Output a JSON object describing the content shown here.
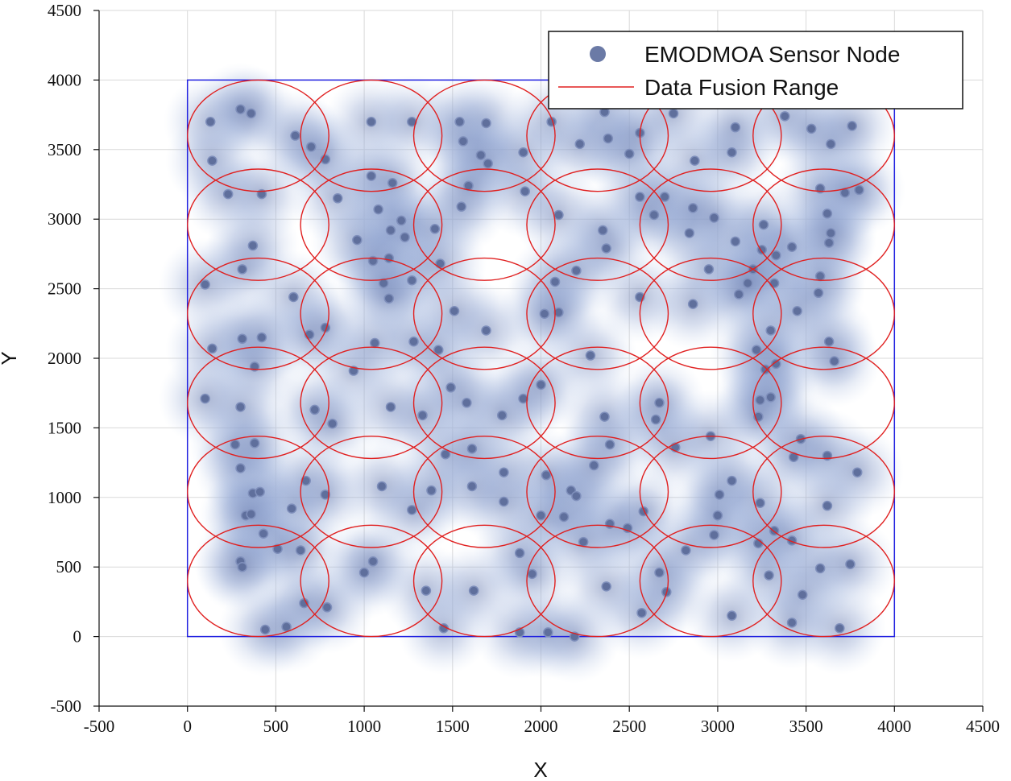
{
  "chart_data": {
    "type": "scatter",
    "title": "",
    "xlabel": "X",
    "ylabel": "Y",
    "xlim": [
      -500,
      4500
    ],
    "ylim": [
      -500,
      4500
    ],
    "xticks": [
      -500,
      0,
      500,
      1000,
      1500,
      2000,
      2500,
      3000,
      3500,
      4000,
      4500
    ],
    "yticks": [
      -500,
      0,
      500,
      1000,
      1500,
      2000,
      2500,
      3000,
      3500,
      4000,
      4500
    ],
    "grid": true,
    "legend_position": "top-right",
    "legend": [
      {
        "label": "EMODMOA Sensor Node",
        "marker": "circle",
        "color": "#6b7aa6"
      },
      {
        "label": "Data Fusion Range",
        "marker": "line",
        "color": "#e02020"
      }
    ],
    "region": {
      "x": [
        0,
        4000
      ],
      "y": [
        0,
        4000
      ],
      "color": "#2020e0"
    },
    "fusion_range": {
      "centers_x": [
        400,
        1040,
        1680,
        2320,
        2960,
        3600
      ],
      "centers_y": [
        400,
        1040,
        1680,
        2320,
        2960,
        3600
      ],
      "radius_x": 400,
      "radius_y": 400,
      "color": "#e02020"
    },
    "series": [
      {
        "name": "EMODMOA Sensor Node",
        "points": [
          [
            130,
            3700
          ],
          [
            300,
            3790
          ],
          [
            360,
            3760
          ],
          [
            140,
            3420
          ],
          [
            610,
            3600
          ],
          [
            700,
            3520
          ],
          [
            780,
            3430
          ],
          [
            1040,
            3700
          ],
          [
            1270,
            3700
          ],
          [
            1540,
            3700
          ],
          [
            1690,
            3690
          ],
          [
            1560,
            3560
          ],
          [
            1660,
            3460
          ],
          [
            1700,
            3400
          ],
          [
            1900,
            3480
          ],
          [
            2060,
            3700
          ],
          [
            2220,
            3540
          ],
          [
            2360,
            3770
          ],
          [
            2380,
            3580
          ],
          [
            2500,
            3470
          ],
          [
            2560,
            3620
          ],
          [
            2750,
            3760
          ],
          [
            2870,
            3420
          ],
          [
            3080,
            3480
          ],
          [
            3100,
            3660
          ],
          [
            3380,
            3740
          ],
          [
            3530,
            3650
          ],
          [
            3640,
            3540
          ],
          [
            3760,
            3670
          ],
          [
            230,
            3180
          ],
          [
            420,
            3180
          ],
          [
            370,
            2810
          ],
          [
            310,
            2640
          ],
          [
            100,
            2530
          ],
          [
            850,
            3150
          ],
          [
            1040,
            3310
          ],
          [
            1080,
            3070
          ],
          [
            1160,
            3260
          ],
          [
            1210,
            2990
          ],
          [
            1150,
            2920
          ],
          [
            1230,
            2870
          ],
          [
            1400,
            2930
          ],
          [
            960,
            2850
          ],
          [
            1140,
            2720
          ],
          [
            1050,
            2700
          ],
          [
            1270,
            2560
          ],
          [
            1110,
            2540
          ],
          [
            1140,
            2430
          ],
          [
            1430,
            2680
          ],
          [
            1550,
            3090
          ],
          [
            1590,
            3240
          ],
          [
            1910,
            3200
          ],
          [
            2100,
            3030
          ],
          [
            2350,
            2920
          ],
          [
            2370,
            2790
          ],
          [
            2560,
            3160
          ],
          [
            2700,
            3160
          ],
          [
            2640,
            3030
          ],
          [
            2840,
            2900
          ],
          [
            2860,
            3080
          ],
          [
            2980,
            3010
          ],
          [
            3100,
            2840
          ],
          [
            3260,
            2960
          ],
          [
            3250,
            2780
          ],
          [
            3330,
            2740
          ],
          [
            3420,
            2800
          ],
          [
            3580,
            3220
          ],
          [
            3620,
            3040
          ],
          [
            3720,
            3190
          ],
          [
            3800,
            3210
          ],
          [
            3640,
            2900
          ],
          [
            3630,
            2830
          ],
          [
            3580,
            2590
          ],
          [
            3570,
            2470
          ],
          [
            3320,
            2540
          ],
          [
            3200,
            2640
          ],
          [
            2950,
            2640
          ],
          [
            2200,
            2630
          ],
          [
            2080,
            2550
          ],
          [
            2020,
            2320
          ],
          [
            2100,
            2330
          ],
          [
            2560,
            2440
          ],
          [
            2860,
            2390
          ],
          [
            3120,
            2460
          ],
          [
            3170,
            2540
          ],
          [
            3450,
            2340
          ],
          [
            3300,
            2200
          ],
          [
            3220,
            2060
          ],
          [
            3330,
            1960
          ],
          [
            3270,
            1920
          ],
          [
            3240,
            1700
          ],
          [
            3300,
            1720
          ],
          [
            3230,
            1580
          ],
          [
            3630,
            2120
          ],
          [
            3660,
            1980
          ],
          [
            600,
            2440
          ],
          [
            780,
            2220
          ],
          [
            690,
            2170
          ],
          [
            140,
            2070
          ],
          [
            310,
            2140
          ],
          [
            420,
            2150
          ],
          [
            380,
            1940
          ],
          [
            940,
            1910
          ],
          [
            1060,
            2110
          ],
          [
            1280,
            2120
          ],
          [
            1420,
            2060
          ],
          [
            1490,
            1790
          ],
          [
            1580,
            1680
          ],
          [
            1900,
            1710
          ],
          [
            1780,
            1590
          ],
          [
            1690,
            2200
          ],
          [
            1510,
            2340
          ],
          [
            2000,
            1810
          ],
          [
            2280,
            2020
          ],
          [
            2360,
            1580
          ],
          [
            2390,
            1380
          ],
          [
            2650,
            1560
          ],
          [
            2670,
            1680
          ],
          [
            2760,
            1360
          ],
          [
            2960,
            1440
          ],
          [
            3430,
            1290
          ],
          [
            3470,
            1420
          ],
          [
            3620,
            1300
          ],
          [
            3790,
            1180
          ],
          [
            3080,
            1120
          ],
          [
            3010,
            1020
          ],
          [
            3000,
            870
          ],
          [
            2980,
            730
          ],
          [
            3240,
            960
          ],
          [
            3320,
            760
          ],
          [
            3230,
            670
          ],
          [
            3420,
            690
          ],
          [
            3290,
            440
          ],
          [
            3580,
            490
          ],
          [
            3750,
            520
          ],
          [
            3620,
            940
          ],
          [
            3480,
            300
          ],
          [
            3420,
            100
          ],
          [
            3690,
            60
          ],
          [
            3080,
            150
          ],
          [
            2710,
            320
          ],
          [
            2820,
            620
          ],
          [
            2670,
            460
          ],
          [
            2570,
            170
          ],
          [
            2370,
            360
          ],
          [
            2490,
            780
          ],
          [
            2580,
            900
          ],
          [
            2390,
            810
          ],
          [
            2170,
            1050
          ],
          [
            2200,
            1010
          ],
          [
            2130,
            860
          ],
          [
            2240,
            680
          ],
          [
            2000,
            870
          ],
          [
            2030,
            1160
          ],
          [
            1790,
            1180
          ],
          [
            1790,
            970
          ],
          [
            1880,
            600
          ],
          [
            1950,
            450
          ],
          [
            1610,
            1080
          ],
          [
            1460,
            1310
          ],
          [
            1380,
            1050
          ],
          [
            1270,
            910
          ],
          [
            1350,
            330
          ],
          [
            1450,
            60
          ],
          [
            1620,
            330
          ],
          [
            1880,
            30
          ],
          [
            2040,
            30
          ],
          [
            2190,
            0
          ],
          [
            1100,
            1080
          ],
          [
            670,
            1120
          ],
          [
            780,
            1020
          ],
          [
            370,
            1030
          ],
          [
            410,
            1040
          ],
          [
            300,
            1210
          ],
          [
            270,
            1380
          ],
          [
            380,
            1390
          ],
          [
            590,
            920
          ],
          [
            330,
            870
          ],
          [
            360,
            880
          ],
          [
            430,
            740
          ],
          [
            510,
            630
          ],
          [
            640,
            620
          ],
          [
            300,
            540
          ],
          [
            310,
            500
          ],
          [
            440,
            50
          ],
          [
            560,
            70
          ],
          [
            660,
            240
          ],
          [
            790,
            210
          ],
          [
            1000,
            460
          ],
          [
            1050,
            540
          ],
          [
            1610,
            1350
          ],
          [
            300,
            1650
          ],
          [
            720,
            1630
          ],
          [
            820,
            1530
          ],
          [
            100,
            1710
          ],
          [
            1150,
            1650
          ],
          [
            1330,
            1590
          ],
          [
            2300,
            1230
          ]
        ]
      }
    ]
  }
}
